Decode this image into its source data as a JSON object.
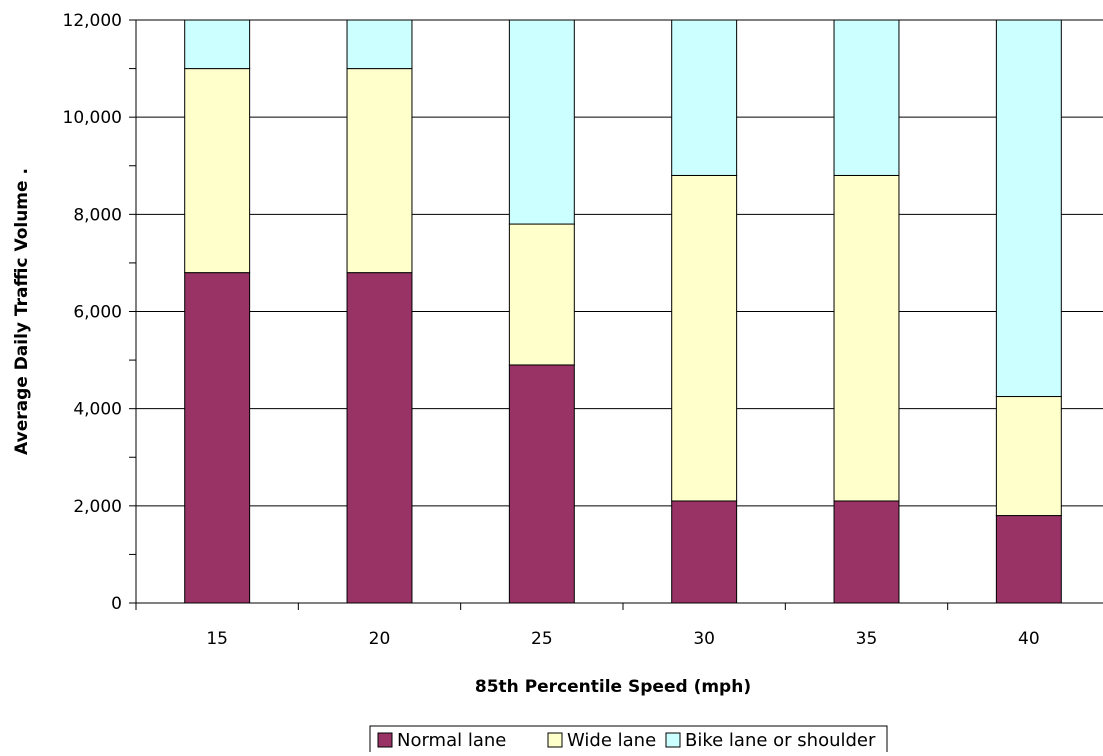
{
  "chart_data": {
    "type": "bar",
    "stacked": true,
    "title": "",
    "xlabel": "85th Percentile Speed (mph)",
    "ylabel": "Average Daily Traffic Volume   .",
    "categories": [
      "15",
      "20",
      "25",
      "30",
      "35",
      "40"
    ],
    "series": [
      {
        "name": "Normal lane",
        "color": "#993366",
        "values": [
          6800,
          6800,
          4900,
          2100,
          2100,
          1800
        ]
      },
      {
        "name": "Wide lane",
        "color": "#FFFFCC",
        "values": [
          4200,
          4200,
          2900,
          6700,
          6700,
          2450
        ]
      },
      {
        "name": "Bike lane or shoulder",
        "color": "#CCFFFF",
        "values": [
          1000,
          1000,
          4200,
          3200,
          3200,
          7750
        ]
      }
    ],
    "ylim": [
      0,
      12000
    ],
    "yticks": [
      0,
      2000,
      4000,
      6000,
      8000,
      10000,
      12000
    ],
    "ytick_labels": [
      "0",
      "2,000",
      "4,000",
      "6,000",
      "8,000",
      "10,000",
      "12,000"
    ],
    "grid": {
      "y_major": true,
      "x": false
    },
    "legend": {
      "position": "bottom"
    }
  }
}
